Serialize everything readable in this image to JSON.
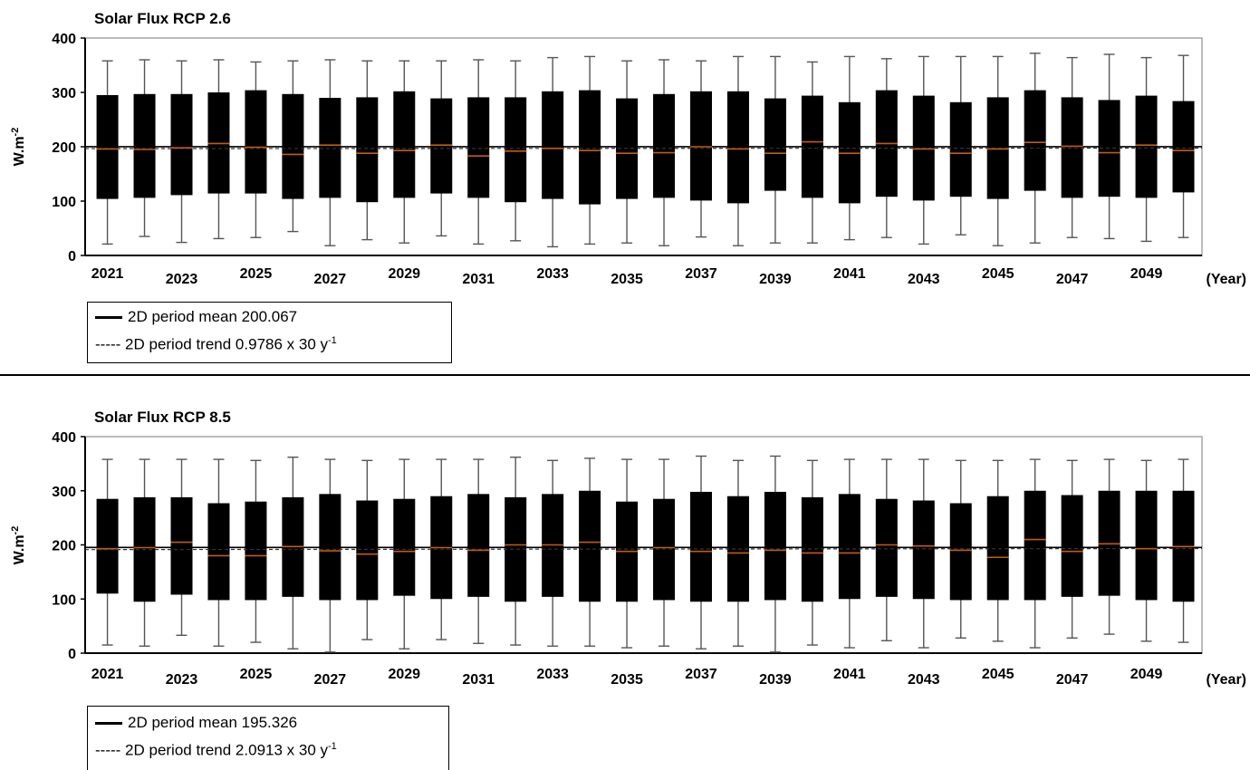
{
  "colors": {
    "box": "#000000",
    "median": "#c55a11",
    "whisker": "#555555",
    "frame": "#a6a6a6",
    "mean_line": "#000000"
  },
  "x_unit_label": "(Year)",
  "y_label": {
    "base": "W.m",
    "sup": "-2"
  },
  "chart_data": [
    {
      "type": "box",
      "title": "Solar Flux RCP 2.6",
      "ylim": [
        0,
        400
      ],
      "yticks": [
        "0",
        "100",
        "200",
        "300",
        "400"
      ],
      "xtick_labels": [
        "2021",
        "2023",
        "2025",
        "2027",
        "2029",
        "2031",
        "2033",
        "2035",
        "2037",
        "2039",
        "2041",
        "2043",
        "2045",
        "2047",
        "2049"
      ],
      "years": [
        2021,
        2022,
        2023,
        2024,
        2025,
        2026,
        2027,
        2028,
        2029,
        2030,
        2031,
        2032,
        2033,
        2034,
        2035,
        2036,
        2037,
        2038,
        2039,
        2040,
        2041,
        2042,
        2043,
        2044,
        2045,
        2046,
        2047,
        2048,
        2049,
        2050
      ],
      "whisker_high": [
        358,
        360,
        358,
        360,
        356,
        358,
        360,
        358,
        358,
        358,
        360,
        358,
        364,
        366,
        358,
        360,
        358,
        366,
        366,
        356,
        366,
        362,
        366,
        366,
        366,
        372,
        364,
        370,
        364,
        368
      ],
      "q3": [
        295,
        297,
        297,
        300,
        304,
        297,
        290,
        291,
        302,
        289,
        291,
        291,
        302,
        304,
        289,
        297,
        302,
        302,
        289,
        294,
        282,
        304,
        294,
        282,
        291,
        304,
        291,
        286,
        294,
        284
      ],
      "median": [
        196,
        195,
        198,
        206,
        199,
        186,
        203,
        188,
        193,
        203,
        183,
        192,
        197,
        193,
        188,
        189,
        200,
        196,
        188,
        209,
        188,
        206,
        196,
        188,
        196,
        208,
        201,
        189,
        203,
        193
      ],
      "q1": [
        104,
        106,
        111,
        114,
        114,
        104,
        106,
        98,
        106,
        114,
        106,
        98,
        104,
        94,
        104,
        106,
        101,
        96,
        119,
        106,
        96,
        108,
        101,
        108,
        104,
        119,
        106,
        108,
        106,
        116
      ],
      "whisker_low": [
        21,
        35,
        24,
        31,
        33,
        44,
        18,
        29,
        23,
        36,
        21,
        27,
        16,
        21,
        23,
        18,
        34,
        18,
        23,
        23,
        29,
        33,
        21,
        38,
        18,
        23,
        33,
        31,
        26,
        33
      ],
      "mean": 200.067,
      "trend_slope_per_30y": 0.9786,
      "legend": {
        "mean_label": "2D period mean 200.067",
        "trend_label": "----- 2D period trend 0.9786 x 30 y",
        "trend_sup": "-1"
      }
    },
    {
      "type": "box",
      "title": "Solar Flux RCP 8.5",
      "ylim": [
        0,
        400
      ],
      "yticks": [
        "0",
        "100",
        "200",
        "300",
        "400"
      ],
      "xtick_labels": [
        "2021",
        "2023",
        "2025",
        "2027",
        "2029",
        "2031",
        "2033",
        "2035",
        "2037",
        "2039",
        "2041",
        "2043",
        "2045",
        "2047",
        "2049"
      ],
      "years": [
        2021,
        2022,
        2023,
        2024,
        2025,
        2026,
        2027,
        2028,
        2029,
        2030,
        2031,
        2032,
        2033,
        2034,
        2035,
        2036,
        2037,
        2038,
        2039,
        2040,
        2041,
        2042,
        2043,
        2044,
        2045,
        2046,
        2047,
        2048,
        2049,
        2050
      ],
      "whisker_high": [
        358,
        358,
        358,
        358,
        356,
        362,
        358,
        356,
        358,
        358,
        358,
        362,
        356,
        360,
        358,
        358,
        364,
        356,
        364,
        356,
        358,
        358,
        358,
        356,
        356,
        358,
        356,
        358,
        356,
        358
      ],
      "q3": [
        285,
        288,
        288,
        277,
        280,
        288,
        294,
        282,
        285,
        290,
        294,
        288,
        294,
        300,
        280,
        285,
        298,
        290,
        298,
        288,
        294,
        285,
        282,
        277,
        290,
        300,
        292,
        300,
        300,
        300
      ],
      "median": [
        193,
        195,
        205,
        180,
        180,
        197,
        189,
        183,
        188,
        195,
        190,
        200,
        200,
        205,
        188,
        195,
        188,
        185,
        190,
        185,
        185,
        200,
        198,
        190,
        177,
        210,
        188,
        202,
        193,
        197
      ],
      "q1": [
        110,
        95,
        108,
        98,
        98,
        104,
        98,
        98,
        106,
        100,
        104,
        95,
        104,
        95,
        95,
        98,
        95,
        95,
        98,
        95,
        100,
        104,
        100,
        98,
        98,
        98,
        104,
        106,
        98,
        95
      ],
      "whisker_low": [
        15,
        13,
        33,
        13,
        20,
        8,
        2,
        25,
        8,
        25,
        18,
        15,
        13,
        13,
        10,
        13,
        8,
        13,
        2,
        15,
        10,
        23,
        10,
        28,
        22,
        10,
        28,
        35,
        22,
        20
      ],
      "mean": 195.326,
      "trend_slope_per_30y": 2.0913,
      "legend": {
        "mean_label": "2D period mean 195.326",
        "trend_label": "----- 2D period trend 2.0913 x 30 y",
        "trend_sup": "-1"
      }
    }
  ]
}
